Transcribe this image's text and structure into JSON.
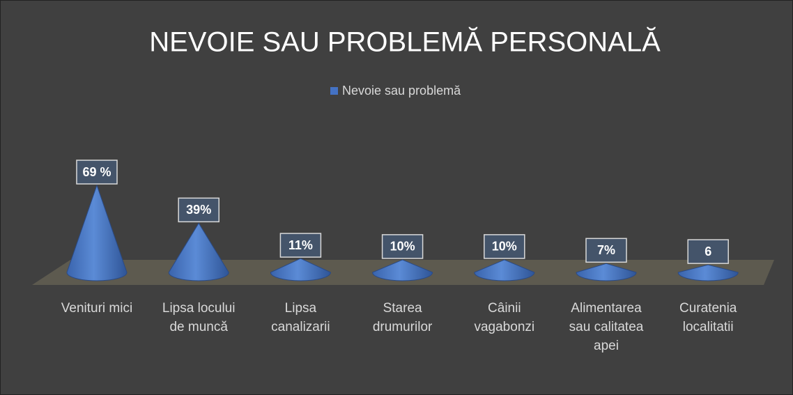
{
  "chart_data": {
    "type": "cone",
    "title": "NEVOIE SAU PROBLEMĂ PERSONALĂ",
    "categories": [
      "Venituri mici",
      "Lipsa locului de muncă",
      "Lipsa canalizarii",
      "Starea drumurilor",
      "Câinii vagabonzi",
      "Alimentarea sau calitatea apei",
      "Curatenia localitatii"
    ],
    "series": [
      {
        "name": "Nevoie sau problemă",
        "color": "#4472c4",
        "values": [
          69,
          39,
          11,
          10,
          10,
          7,
          6
        ],
        "value_labels": [
          "69 %",
          "39%",
          "11%",
          "10%",
          "10%",
          "7%",
          "6"
        ]
      }
    ],
    "legend": "top"
  }
}
